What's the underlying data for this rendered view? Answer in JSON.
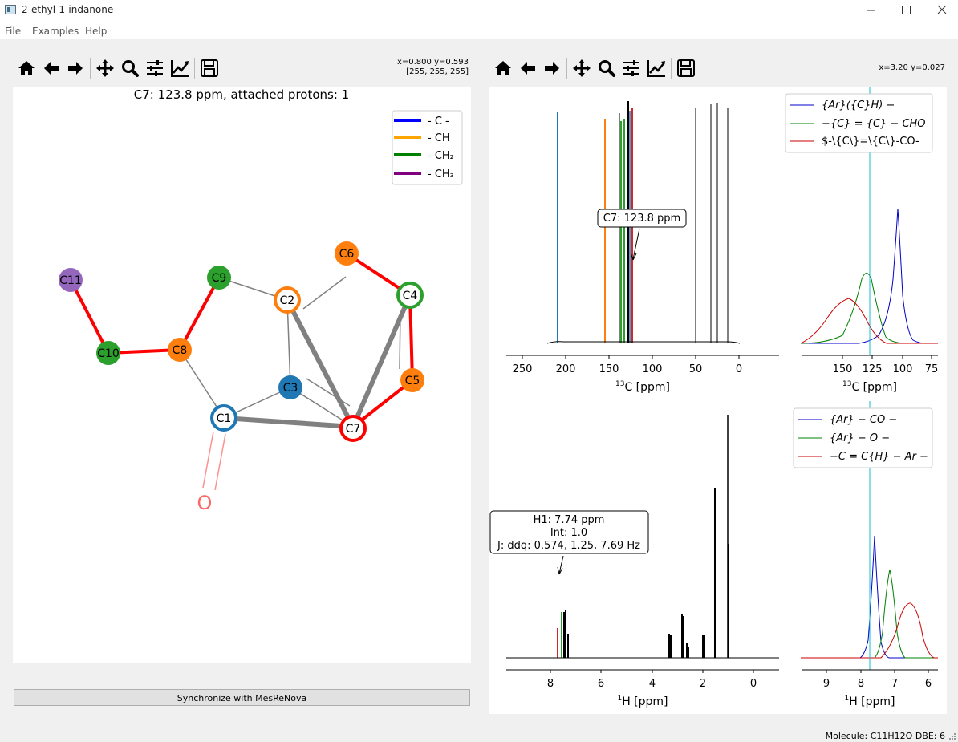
{
  "window": {
    "title": "2-ethyl-1-indanone",
    "minimize_icon": "minimize-icon",
    "maximize_icon": "maximize-icon",
    "close_icon": "close-icon"
  },
  "menu": {
    "items": [
      "File",
      "Examples",
      "Help"
    ]
  },
  "toolbar": {
    "icons": [
      "home-icon",
      "back-arrow-icon",
      "forward-arrow-icon",
      "pan-icon",
      "zoom-icon",
      "configure-subplots-icon",
      "edit-axis-icon",
      "save-icon"
    ]
  },
  "left_toolbar": {
    "coords_line1": "x=0.800 y=0.593",
    "coords_line2": "[255, 255, 255]"
  },
  "right_toolbar": {
    "coords_line1": "x=3.20 y=0.027"
  },
  "graph": {
    "title": "C7: 123.8 ppm, attached protons: 1",
    "legend": [
      {
        "label": "- C -",
        "color": "#0000ff"
      },
      {
        "label": "- CH",
        "color": "#ffa500"
      },
      {
        "label": "- CH₂",
        "color": "#008000"
      },
      {
        "label": "- CH₃",
        "color": "#800080"
      }
    ],
    "nodes": [
      "C11",
      "C9",
      "C6",
      "C2",
      "C4",
      "C8",
      "C10",
      "C5",
      "C3",
      "C1",
      "C7",
      "O"
    ],
    "colors": {
      "c_quat": "#1f77b4",
      "ch": "#ff7f0e",
      "ch2": "#2ca02c",
      "ch3": "#9467bd",
      "highlight": "#ff0000",
      "oxygen": "#ff6666"
    }
  },
  "c13_spectrum": {
    "annotation": "C7: 123.8 ppm",
    "xlabel_sup": "13",
    "xlabel": "C [ppm]",
    "ticks": [
      "250",
      "200",
      "150",
      "100",
      "50",
      "0"
    ],
    "inset_ticks": [
      "150",
      "125",
      "100",
      "75"
    ],
    "legend": [
      {
        "label": "{Ar}({C}H) −",
        "color": "#0000cc"
      },
      {
        "label": "−{C} = {C} − CHO",
        "color": "#008000"
      },
      {
        "label": "$-\\{C\\}=\\{C\\}-CO-",
        "color": "#cc0000"
      }
    ]
  },
  "h1_spectrum": {
    "annotation_line1": "H1: 7.74 ppm",
    "annotation_line2": "Int: 1.0",
    "annotation_line3": "J: ddq: 0.574, 1.25, 7.69 Hz",
    "xlabel_sup": "1",
    "xlabel": "H [ppm]",
    "ticks": [
      "8",
      "6",
      "4",
      "2",
      "0"
    ],
    "inset_ticks": [
      "9",
      "8",
      "7",
      "6"
    ],
    "legend": [
      {
        "label": "{Ar} − CO −",
        "color": "#0000cc"
      },
      {
        "label": "{Ar} − O −",
        "color": "#008000"
      },
      {
        "label": "−C = C{H} − Ar −",
        "color": "#cc0000"
      }
    ]
  },
  "sync_button": {
    "label": "Synchronize with MesReNova"
  },
  "status": {
    "text": "Molecule: C11H12O DBE: 6"
  }
}
